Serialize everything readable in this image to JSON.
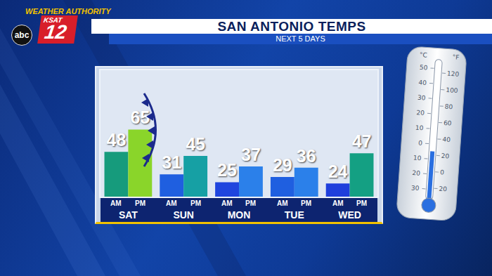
{
  "chart_data": {
    "type": "bar",
    "title": "SAN ANTONIO TEMPS",
    "subtitle": "NEXT 5 DAYS",
    "categories": [
      "SAT",
      "SUN",
      "MON",
      "TUE",
      "WED"
    ],
    "series": [
      {
        "name": "AM",
        "values": [
          48,
          31,
          25,
          29,
          24
        ],
        "colors": [
          "#169b7c",
          "#1f5fe0",
          "#1f45de",
          "#1f5fe0",
          "#1f3fdc"
        ]
      },
      {
        "name": "PM",
        "values": [
          65,
          45,
          37,
          36,
          47
        ],
        "colors": [
          "#8ad52a",
          "#16a0a4",
          "#2b80ea",
          "#2b80ea",
          "#14a083"
        ]
      }
    ],
    "ylim": [
      14,
      110
    ],
    "tick_labels": "x",
    "data_labels": true,
    "grid": false
  },
  "branding": {
    "slogan": "WEATHER AUTHORITY",
    "station": "KSAT",
    "channel": "12",
    "network": "abc"
  },
  "thermometer": {
    "celsius_label": "°C",
    "fahrenheit_label": "°F",
    "celsius_ticks": [
      "50",
      "40",
      "30",
      "20",
      "10",
      "0",
      "10",
      "20",
      "30"
    ],
    "fahrenheit_ticks": [
      "120",
      "100",
      "80",
      "60",
      "40",
      "20",
      "0",
      "20"
    ]
  }
}
